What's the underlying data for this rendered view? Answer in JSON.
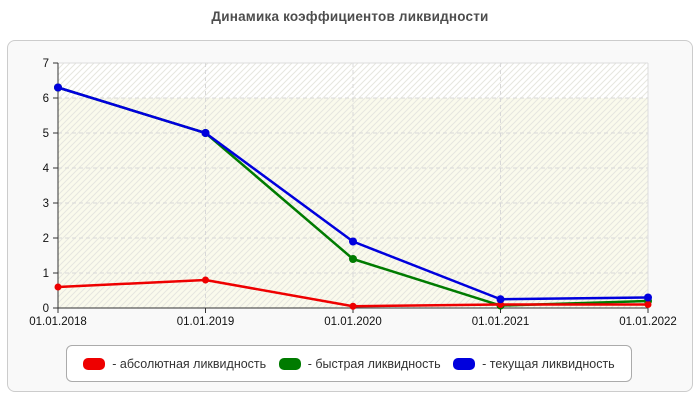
{
  "title": "Динамика коэффициентов ликвидности",
  "chart_data": {
    "type": "line",
    "title": "Динамика коэффициентов ликвидности",
    "x": [
      "01.01.2018",
      "01.01.2019",
      "01.01.2020",
      "01.01.2021",
      "01.01.2022"
    ],
    "series": [
      {
        "name": "абсолютная ликвидность",
        "legend_label": "- абсолютная ликвидность",
        "color": "#ee0000",
        "values": [
          0.6,
          0.8,
          0.05,
          0.1,
          0.1
        ]
      },
      {
        "name": "быстрая ликвидность",
        "legend_label": "- быстрая ликвидность",
        "color": "#007b00",
        "values": [
          6.3,
          5.0,
          1.4,
          0.07,
          0.2
        ]
      },
      {
        "name": "текущая ликвидность",
        "legend_label": "- текущая ликвидность",
        "color": "#0000dd",
        "values": [
          6.3,
          5.0,
          1.9,
          0.25,
          0.3
        ]
      }
    ],
    "ylim": [
      0,
      7
    ],
    "yticks": [
      0,
      1,
      2,
      3,
      4,
      5,
      6,
      7
    ],
    "grid": true,
    "legend_position": "bottom",
    "colors": {
      "plot_band_low_fill": "#fafaec",
      "plot_band_high_fill": "#ffffff",
      "hatch_line": "#e6e6df",
      "grid_line": "#d8d8d8",
      "axis_line": "#333333",
      "plot_border": "#dddddd",
      "tick_label": "#111111"
    },
    "band_split_value": 6
  }
}
